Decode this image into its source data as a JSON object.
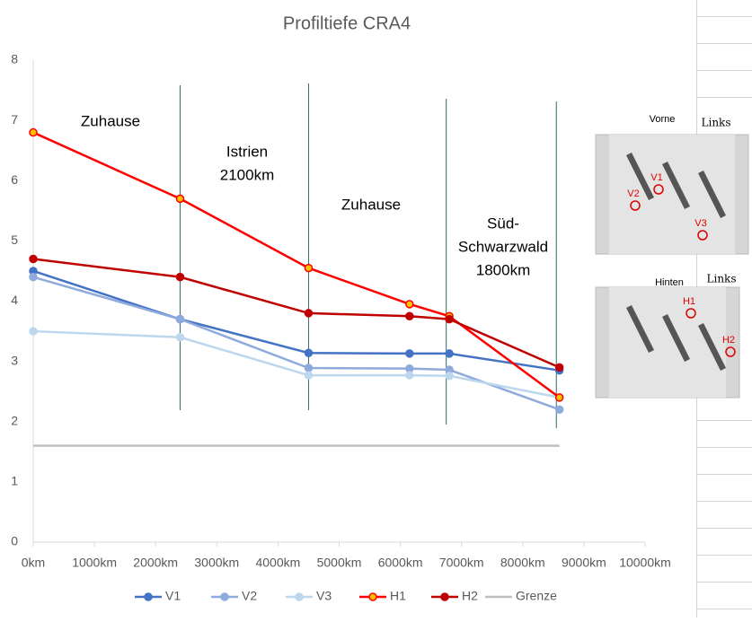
{
  "chart_data": {
    "type": "line",
    "title": "Profiltiefe CRA4",
    "x": [
      0,
      2400,
      4500,
      6150,
      6800,
      8600
    ],
    "series": [
      {
        "name": "V1",
        "color": "#4472c4",
        "values": [
          4.5,
          3.7,
          3.14,
          3.13,
          3.13,
          2.85
        ]
      },
      {
        "name": "V2",
        "color": "#8faadc",
        "values": [
          4.4,
          3.7,
          2.89,
          2.88,
          2.86,
          2.2
        ]
      },
      {
        "name": "V3",
        "color": "#bdd7ee",
        "values": [
          3.5,
          3.4,
          2.77,
          2.77,
          2.76,
          2.4
        ]
      },
      {
        "name": "H1",
        "color": "#ff0000",
        "marker_fill": "#ffc000",
        "values": [
          6.8,
          5.7,
          4.55,
          3.95,
          3.75,
          2.4
        ]
      },
      {
        "name": "H2",
        "color": "#c00000",
        "values": [
          4.7,
          4.4,
          3.8,
          3.75,
          3.7,
          2.9
        ]
      },
      {
        "name": "Grenze",
        "color": "#bfbfbf",
        "x": [
          0,
          8600
        ],
        "values": [
          1.6,
          1.6
        ]
      }
    ],
    "xlim": [
      0,
      10000
    ],
    "xticks": [
      {
        "value": 0,
        "label": "0km"
      },
      {
        "value": 1000,
        "label": "1000km"
      },
      {
        "value": 2000,
        "label": "2000km"
      },
      {
        "value": 3000,
        "label": "3000km"
      },
      {
        "value": 4000,
        "label": "4000km"
      },
      {
        "value": 5000,
        "label": "5000km"
      },
      {
        "value": 6000,
        "label": "6000km"
      },
      {
        "value": 7000,
        "label": "7000km"
      },
      {
        "value": 8000,
        "label": "8000km"
      },
      {
        "value": 9000,
        "label": "9000km"
      },
      {
        "value": 10000,
        "label": "10000km"
      }
    ],
    "ylim": [
      0,
      8
    ],
    "yticks": [
      0,
      1,
      2,
      3,
      4,
      5,
      6,
      7,
      8
    ],
    "grid": false,
    "legend": "bottom",
    "vlines": [
      2400,
      4500,
      6750,
      8550
    ],
    "annotations": [
      [
        "Zuhause"
      ],
      [
        "Istrien",
        "2100km"
      ],
      [
        "Zuhause"
      ],
      [
        "Süd-",
        "Schwarzwald",
        "1800km"
      ]
    ],
    "photos": [
      {
        "title": "Vorne",
        "side": "Links",
        "markers": [
          "V1",
          "V2",
          "V3"
        ]
      },
      {
        "title": "Hinten",
        "side": "Links",
        "markers": [
          "H1",
          "H2"
        ]
      }
    ]
  }
}
